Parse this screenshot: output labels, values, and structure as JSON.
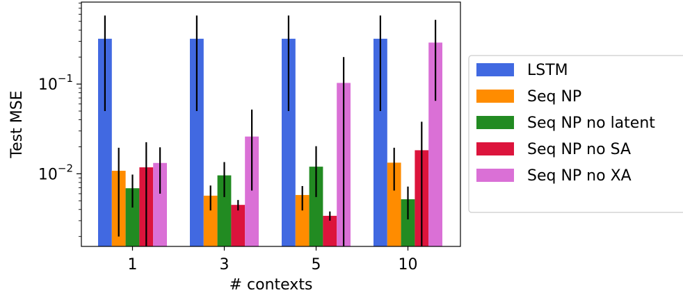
{
  "chart_data": {
    "type": "bar",
    "title": "",
    "xlabel": "# contexts",
    "ylabel": "Test MSE",
    "yscale": "log",
    "ylim": [
      0.00155,
      0.82
    ],
    "categories": [
      "1",
      "3",
      "5",
      "10"
    ],
    "y_tick_labels": [
      "10^-1",
      "10^-2"
    ],
    "legend_position": "outside-right",
    "grid": false,
    "series": [
      {
        "name": "LSTM",
        "color": "#4169e1",
        "values": [
          0.32,
          0.32,
          0.32,
          0.32
        ],
        "error_low": [
          0.05,
          0.05,
          0.05,
          0.05
        ],
        "error_high": [
          0.58,
          0.58,
          0.58,
          0.58
        ]
      },
      {
        "name": "Seq NP",
        "color": "#ff8c00",
        "values": [
          0.0108,
          0.0057,
          0.0058,
          0.0133
        ],
        "error_low": [
          0.002,
          0.0039,
          0.0039,
          0.0065
        ],
        "error_high": [
          0.0195,
          0.0074,
          0.0073,
          0.0195
        ]
      },
      {
        "name": "Seq NP no latent",
        "color": "#228b22",
        "values": [
          0.0069,
          0.0096,
          0.012,
          0.0052
        ],
        "error_low": [
          0.0042,
          0.0055,
          0.0055,
          0.0031
        ],
        "error_high": [
          0.0098,
          0.0135,
          0.0203,
          0.0072
        ]
      },
      {
        "name": "Seq NP no SA",
        "color": "#dc143c",
        "values": [
          0.0118,
          0.0045,
          0.0034,
          0.0183
        ],
        "error_low": [
          0.0012,
          0.0039,
          0.003,
          0.0012
        ],
        "error_high": [
          0.0225,
          0.0051,
          0.0038,
          0.038
        ]
      },
      {
        "name": "Seq NP no XA",
        "color": "#da70d6",
        "values": [
          0.0132,
          0.026,
          0.103,
          0.29
        ],
        "error_low": [
          0.006,
          0.0065,
          0.0015,
          0.065
        ],
        "error_high": [
          0.0197,
          0.052,
          0.2,
          0.52
        ]
      }
    ]
  }
}
